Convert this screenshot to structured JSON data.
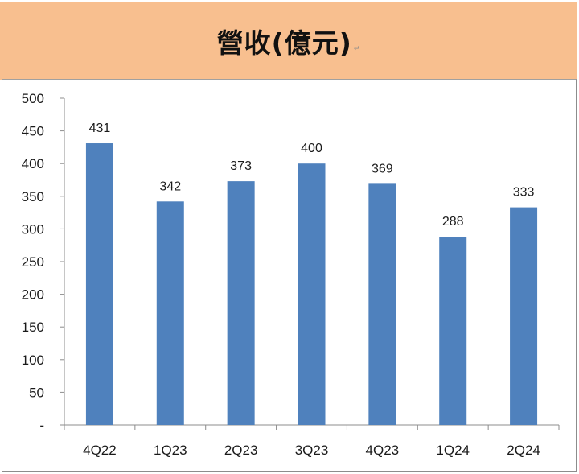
{
  "header": {
    "title": "營收(億元)",
    "background": "#f8bf8f"
  },
  "chart_data": {
    "type": "bar",
    "title": "營收(億元)",
    "xlabel": "",
    "ylabel": "",
    "categories": [
      "4Q22",
      "1Q23",
      "2Q23",
      "3Q23",
      "4Q23",
      "1Q24",
      "2Q24"
    ],
    "values": [
      431,
      342,
      373,
      400,
      369,
      288,
      333
    ],
    "data_labels": [
      "431",
      "342",
      "373",
      "400",
      "369",
      "288",
      "333"
    ],
    "ylim": [
      0,
      500
    ],
    "yticks": [
      0,
      50,
      100,
      150,
      200,
      250,
      300,
      350,
      400,
      450,
      500
    ],
    "ytick_labels": [
      "-",
      "50",
      "100",
      "150",
      "200",
      "250",
      "300",
      "350",
      "400",
      "450",
      "500"
    ],
    "grid": false,
    "legend": "none",
    "bar_color": "#4f81bd"
  }
}
